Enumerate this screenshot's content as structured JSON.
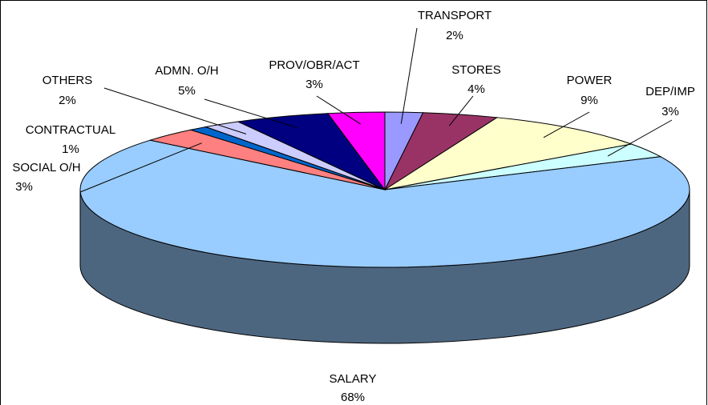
{
  "chart_data": {
    "type": "pie3d",
    "categories": [
      "TRANSPORT",
      "STORES",
      "POWER",
      "DEP/IMP",
      "SALARY",
      "SOCIAL O/H",
      "CONTRACTUAL",
      "OTHERS",
      "ADMN. O/H",
      "PROV/OBR/ACT"
    ],
    "values": [
      2,
      4,
      9,
      3,
      68,
      3,
      1,
      2,
      5,
      3
    ],
    "value_labels": [
      "2%",
      "4%",
      "9%",
      "3%",
      "68%",
      "3%",
      "1%",
      "2%",
      "5%",
      "3%"
    ],
    "colors": [
      "#9999ff",
      "#993366",
      "#ffffcc",
      "#ccffff",
      "#99ccff",
      "#ff8080",
      "#0066cc",
      "#ccccff",
      "#000080",
      "#ff00ff"
    ]
  }
}
